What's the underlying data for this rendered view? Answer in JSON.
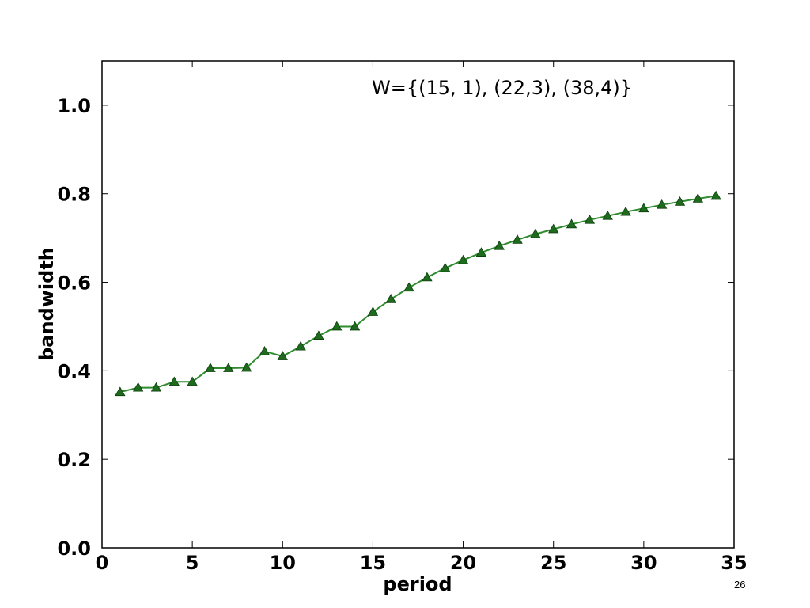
{
  "page_number": "26",
  "chart_data": {
    "type": "line",
    "title": "",
    "xlabel": "period",
    "ylabel": "bandwidth",
    "xlim": [
      0,
      35
    ],
    "ylim": [
      0,
      1.1
    ],
    "x_ticks": [
      "0",
      "5",
      "10",
      "15",
      "20",
      "25",
      "30",
      "35"
    ],
    "y_ticks": [
      "0.0",
      "0.2",
      "0.4",
      "0.6",
      "0.8",
      "1.0"
    ],
    "annotation": "W={(15, 1), (22,3), (38,4)}",
    "grid": false,
    "marker": "triangle",
    "line_color": "#2e8b2e",
    "marker_color": "#1e6b1e",
    "series": [
      {
        "x": [
          1,
          2,
          3,
          4,
          5,
          6,
          7,
          8,
          9,
          10,
          11,
          12,
          13,
          14,
          15,
          16,
          17,
          18,
          19,
          20,
          21,
          22,
          23,
          24,
          25,
          26,
          27,
          28,
          29,
          30,
          31,
          32,
          33,
          34
        ],
        "values": [
          0.352,
          0.362,
          0.362,
          0.375,
          0.375,
          0.406,
          0.406,
          0.407,
          0.444,
          0.433,
          0.455,
          0.479,
          0.5,
          0.5,
          0.533,
          0.562,
          0.588,
          0.611,
          0.632,
          0.65,
          0.667,
          0.682,
          0.696,
          0.709,
          0.72,
          0.731,
          0.741,
          0.75,
          0.759,
          0.767,
          0.775,
          0.782,
          0.789,
          0.795
        ]
      }
    ]
  }
}
